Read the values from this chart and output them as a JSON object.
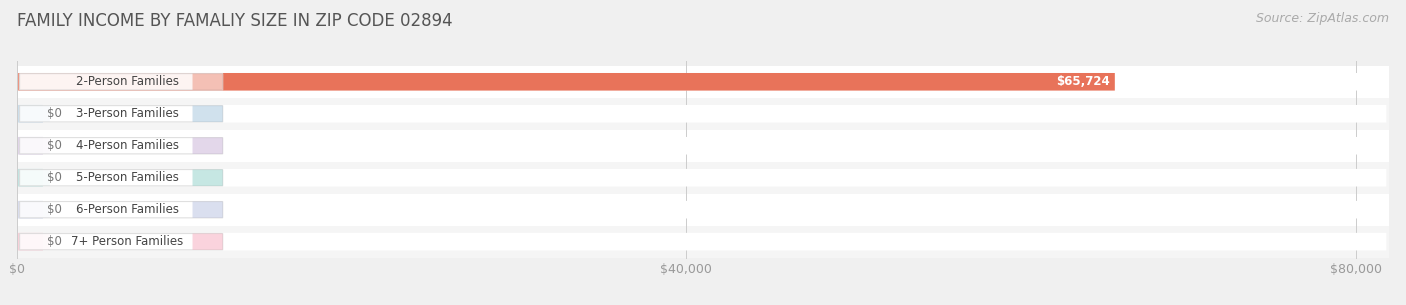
{
  "title": "FAMILY INCOME BY FAMALIY SIZE IN ZIP CODE 02894",
  "source": "Source: ZipAtlas.com",
  "categories": [
    "2-Person Families",
    "3-Person Families",
    "4-Person Families",
    "5-Person Families",
    "6-Person Families",
    "7+ Person Families"
  ],
  "values": [
    65724,
    0,
    0,
    0,
    0,
    0
  ],
  "bar_colors": [
    "#e8735a",
    "#8ab4d4",
    "#b99ccc",
    "#72c4bb",
    "#a4afd8",
    "#f493aa"
  ],
  "value_labels": [
    "$65,724",
    "$0",
    "$0",
    "$0",
    "$0",
    "$0"
  ],
  "xlim": [
    0,
    82000
  ],
  "xtick_vals": [
    0,
    40000,
    80000
  ],
  "xtick_labels": [
    "$0",
    "$40,000",
    "$80,000"
  ],
  "bg_color": "#f0f0f0",
  "row_bg_color": "#ffffff",
  "alt_row_bg": "#f7f7f7",
  "title_fontsize": 12,
  "source_fontsize": 9,
  "label_fontsize": 8.5,
  "value_fontsize": 8.5
}
